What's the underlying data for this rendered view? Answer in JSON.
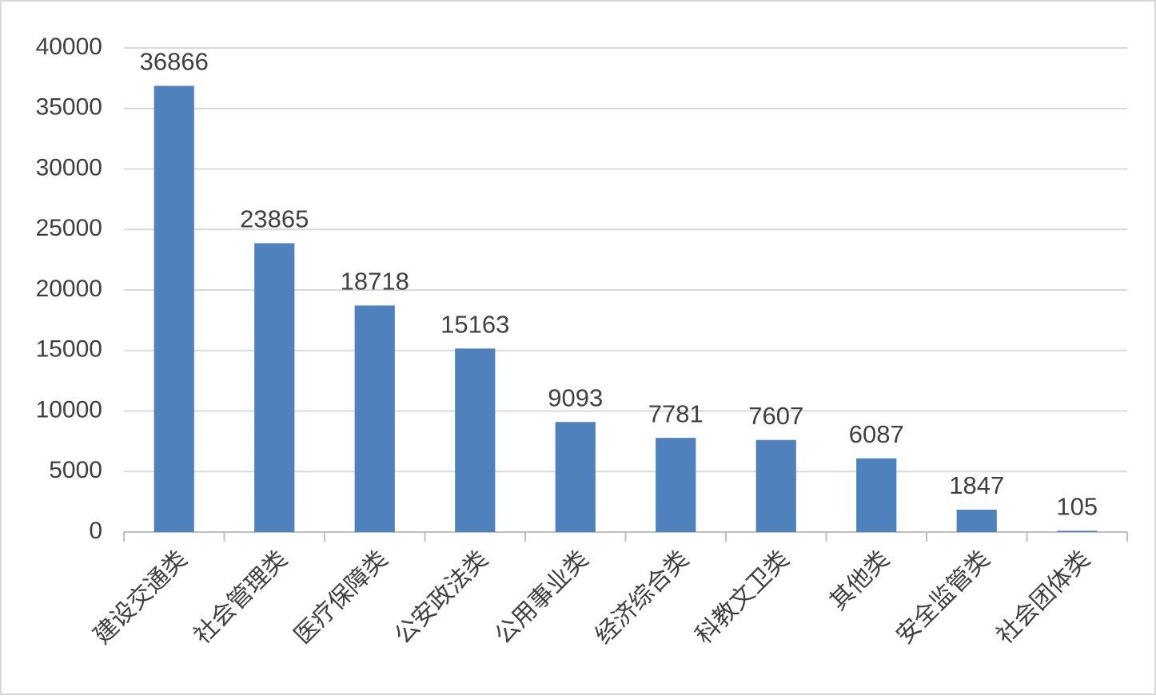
{
  "chart_data": {
    "type": "bar",
    "categories": [
      "建设交通类",
      "社会管理类",
      "医疗保障类",
      "公安政法类",
      "公用事业类",
      "经济综合类",
      "科教文卫类",
      "其他类",
      "安全监管类",
      "社会团体类"
    ],
    "values": [
      36866,
      23865,
      18718,
      15163,
      9093,
      7781,
      7607,
      6087,
      1847,
      105
    ],
    "color": "#4f81bd",
    "ylim": [
      0,
      40000
    ],
    "yticks": [
      0,
      5000,
      10000,
      15000,
      20000,
      25000,
      30000,
      35000,
      40000
    ],
    "grid": true
  }
}
